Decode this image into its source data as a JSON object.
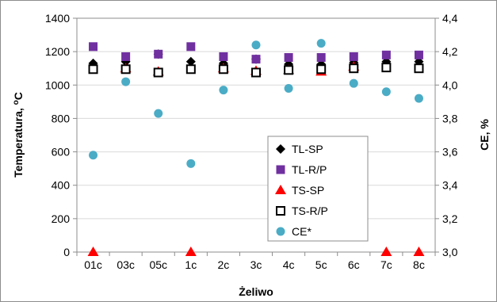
{
  "chart_data": {
    "type": "scatter",
    "categories": [
      "01c",
      "03c",
      "05c",
      "1c",
      "2c",
      "3c",
      "4c",
      "5c",
      "6c",
      "7c",
      "8c"
    ],
    "xlabel": "Żeliwo",
    "ylabel": "Temperatura, ",
    "ylabel_unit": "C",
    "ylabel_sup": "o",
    "y2label": "CE, %",
    "ylim": [
      0,
      1400
    ],
    "yticks": [
      "0",
      "200",
      "400",
      "600",
      "800",
      "1000",
      "1200",
      "1400"
    ],
    "y2lim": [
      3.0,
      4.4
    ],
    "y2ticks": [
      "3,0",
      "3,2",
      "3,4",
      "3,6",
      "3,8",
      "4,0",
      "4,2",
      "4,4"
    ],
    "grid": "horizontal",
    "legend_position": "center-right",
    "series": [
      {
        "name": "TL-SP",
        "axis": "left",
        "marker": "diamond",
        "color": "#000000",
        "values": [
          1130,
          1140,
          1185,
          1140,
          1130,
          1155,
          1125,
          1125,
          1135,
          1140,
          1140
        ]
      },
      {
        "name": "TL-R/P",
        "axis": "left",
        "marker": "square",
        "color": "#7030a0",
        "values": [
          1230,
          1170,
          1185,
          1230,
          1170,
          1155,
          1165,
          1165,
          1170,
          1180,
          1180
        ]
      },
      {
        "name": "TS-SP",
        "axis": "left",
        "marker": "triangle",
        "color": "#ff0000",
        "values": [
          0,
          1100,
          1080,
          0,
          1100,
          1085,
          1090,
          1080,
          1110,
          0,
          0
        ]
      },
      {
        "name": "TS-R/P",
        "axis": "left",
        "marker": "open-square",
        "color": "#000000",
        "values": [
          1095,
          1095,
          1075,
          1095,
          1095,
          1075,
          1090,
          1095,
          1100,
          1105,
          1100
        ]
      },
      {
        "name": "CE*",
        "axis": "right",
        "marker": "circle",
        "color": "#4bacc6",
        "values": [
          3.58,
          4.02,
          3.83,
          3.53,
          3.97,
          4.24,
          3.98,
          4.25,
          4.01,
          3.96,
          3.92
        ]
      }
    ]
  }
}
